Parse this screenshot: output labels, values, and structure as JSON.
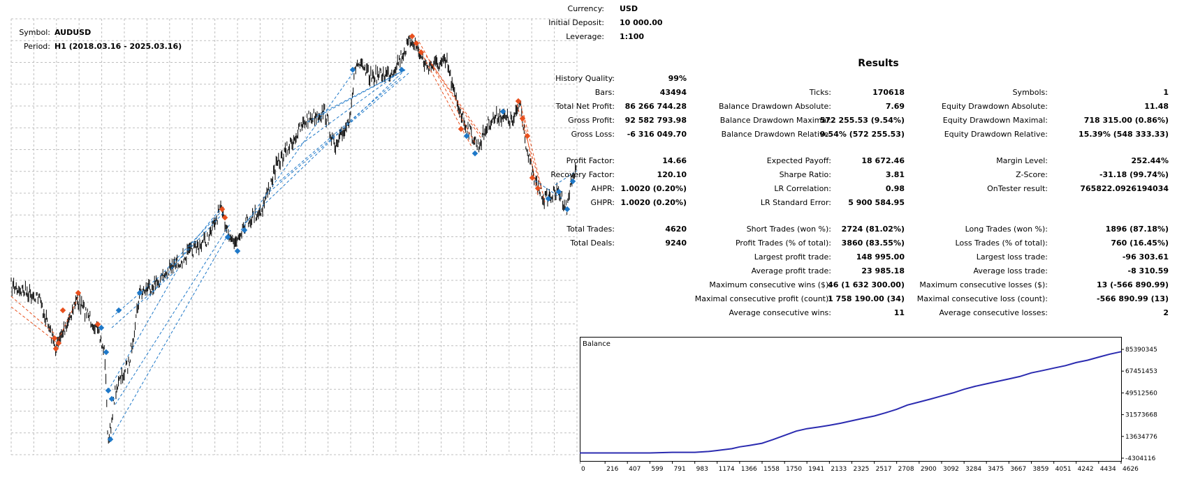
{
  "symbol_box": {
    "symbol_label": "Symbol:",
    "symbol_value": "AUDUSD",
    "period_label": "Period:",
    "period_value": "H1 (2018.03.16 - 2025.03.16)"
  },
  "settings": {
    "currency_label": "Currency:",
    "currency_value": "USD",
    "deposit_label": "Initial Deposit:",
    "deposit_value": "10 000.00",
    "leverage_label": "Leverage:",
    "leverage_value": "1:100"
  },
  "results_title": "Results",
  "colors": {
    "price": "#000000",
    "sell_marker": "#e8501e",
    "buy_marker": "#1e78c8",
    "balance_line": "#2b2bb0",
    "grid": "#bfbfbf"
  },
  "stats": {
    "history_quality": {
      "label": "History Quality:",
      "value": "99%"
    },
    "bars": {
      "label": "Bars:",
      "value": "43494"
    },
    "ticks": {
      "label": "Ticks:",
      "value": "170618"
    },
    "symbols": {
      "label": "Symbols:",
      "value": "1"
    },
    "total_net_profit": {
      "label": "Total Net Profit:",
      "value": "86 266 744.28"
    },
    "balance_dd_abs": {
      "label": "Balance Drawdown Absolute:",
      "value": "7.69"
    },
    "equity_dd_abs": {
      "label": "Equity Drawdown Absolute:",
      "value": "11.48"
    },
    "gross_profit": {
      "label": "Gross Profit:",
      "value": "92 582 793.98"
    },
    "balance_dd_max": {
      "label": "Balance Drawdown Maximal:",
      "value": "572 255.53 (9.54%)"
    },
    "equity_dd_max": {
      "label": "Equity Drawdown Maximal:",
      "value": "718 315.00 (0.86%)"
    },
    "gross_loss": {
      "label": "Gross Loss:",
      "value": "-6 316 049.70"
    },
    "balance_dd_rel": {
      "label": "Balance Drawdown Relative:",
      "value": "9.54% (572 255.53)"
    },
    "equity_dd_rel": {
      "label": "Equity Drawdown Relative:",
      "value": "15.39% (548 333.33)"
    },
    "profit_factor": {
      "label": "Profit Factor:",
      "value": "14.66"
    },
    "expected_payoff": {
      "label": "Expected Payoff:",
      "value": "18 672.46"
    },
    "margin_level": {
      "label": "Margin Level:",
      "value": "252.44%"
    },
    "recovery_factor": {
      "label": "Recovery Factor:",
      "value": "120.10"
    },
    "sharpe_ratio": {
      "label": "Sharpe Ratio:",
      "value": "3.81"
    },
    "z_score": {
      "label": "Z-Score:",
      "value": "-31.18 (99.74%)"
    },
    "ahpr": {
      "label": "AHPR:",
      "value": "1.0020 (0.20%)"
    },
    "lr_correlation": {
      "label": "LR Correlation:",
      "value": "0.98"
    },
    "ontester": {
      "label": "OnTester result:",
      "value": "765822.0926194034"
    },
    "ghpr": {
      "label": "GHPR:",
      "value": "1.0020 (0.20%)"
    },
    "lr_std_error": {
      "label": "LR Standard Error:",
      "value": "5 900 584.95"
    },
    "total_trades": {
      "label": "Total Trades:",
      "value": "4620"
    },
    "short_trades": {
      "label": "Short Trades (won %):",
      "value": "2724 (81.02%)"
    },
    "long_trades": {
      "label": "Long Trades (won %):",
      "value": "1896 (87.18%)"
    },
    "total_deals": {
      "label": "Total Deals:",
      "value": "9240"
    },
    "profit_trades": {
      "label": "Profit Trades (% of total):",
      "value": "3860 (83.55%)"
    },
    "loss_trades": {
      "label": "Loss Trades (% of total):",
      "value": "760 (16.45%)"
    },
    "largest_profit": {
      "label": "Largest profit trade:",
      "value": "148 995.00"
    },
    "largest_loss": {
      "label": "Largest loss trade:",
      "value": "-96 303.61"
    },
    "avg_profit": {
      "label": "Average profit trade:",
      "value": "23 985.18"
    },
    "avg_loss": {
      "label": "Average loss trade:",
      "value": "-8 310.59"
    },
    "max_cons_wins": {
      "label": "Maximum consecutive wins ($):",
      "value": "46 (1 632 300.00)"
    },
    "max_cons_losses": {
      "label": "Maximum consecutive losses ($):",
      "value": "13 (-566 890.99)"
    },
    "maximal_cons_profit": {
      "label": "Maximal consecutive profit (count):",
      "value": "1 758 190.00 (34)"
    },
    "maximal_cons_loss": {
      "label": "Maximal consecutive loss (count):",
      "value": "-566 890.99 (13)"
    },
    "avg_cons_wins": {
      "label": "Average consecutive wins:",
      "value": "11"
    },
    "avg_cons_losses": {
      "label": "Average consecutive losses:",
      "value": "2"
    }
  },
  "chart_data": {
    "type": "line",
    "title": "Balance",
    "x_ticks": [
      "0",
      "216",
      "407",
      "599",
      "791",
      "983",
      "1174",
      "1366",
      "1558",
      "1750",
      "1941",
      "2133",
      "2325",
      "2517",
      "2708",
      "2900",
      "3092",
      "3284",
      "3475",
      "3667",
      "3859",
      "4051",
      "4242",
      "4434",
      "4626"
    ],
    "y_ticks": [
      "85390345",
      "67451453",
      "49512560",
      "31573668",
      "13634776",
      "-4304116"
    ],
    "xlim": [
      0,
      4626
    ],
    "ylim": [
      -4304116,
      85390345
    ],
    "series": [
      {
        "x": [
          0,
          216,
          407,
          599,
          791,
          983,
          1100,
          1174,
          1300,
          1366,
          1450,
          1558,
          1650,
          1750,
          1850,
          1941,
          2050,
          2133,
          2230,
          2325,
          2420,
          2517,
          2610,
          2708,
          2800,
          2900,
          3000,
          3092,
          3190,
          3284,
          3380,
          3475,
          3570,
          3667,
          3760,
          3859,
          3960,
          4051,
          4150,
          4242,
          4340,
          4434,
          4530,
          4626
        ],
        "y": [
          0,
          0,
          0,
          0,
          500000,
          500000,
          1200000,
          2000000,
          3500000,
          5000000,
          6200000,
          8000000,
          11000000,
          14500000,
          18000000,
          20000000,
          21500000,
          22800000,
          24500000,
          26500000,
          28500000,
          30500000,
          33000000,
          36000000,
          39500000,
          42000000,
          44500000,
          47000000,
          49500000,
          52500000,
          55000000,
          57000000,
          59000000,
          61000000,
          63000000,
          66000000,
          68000000,
          70000000,
          72000000,
          74500000,
          76500000,
          79000000,
          81500000,
          83500000
        ]
      }
    ]
  }
}
